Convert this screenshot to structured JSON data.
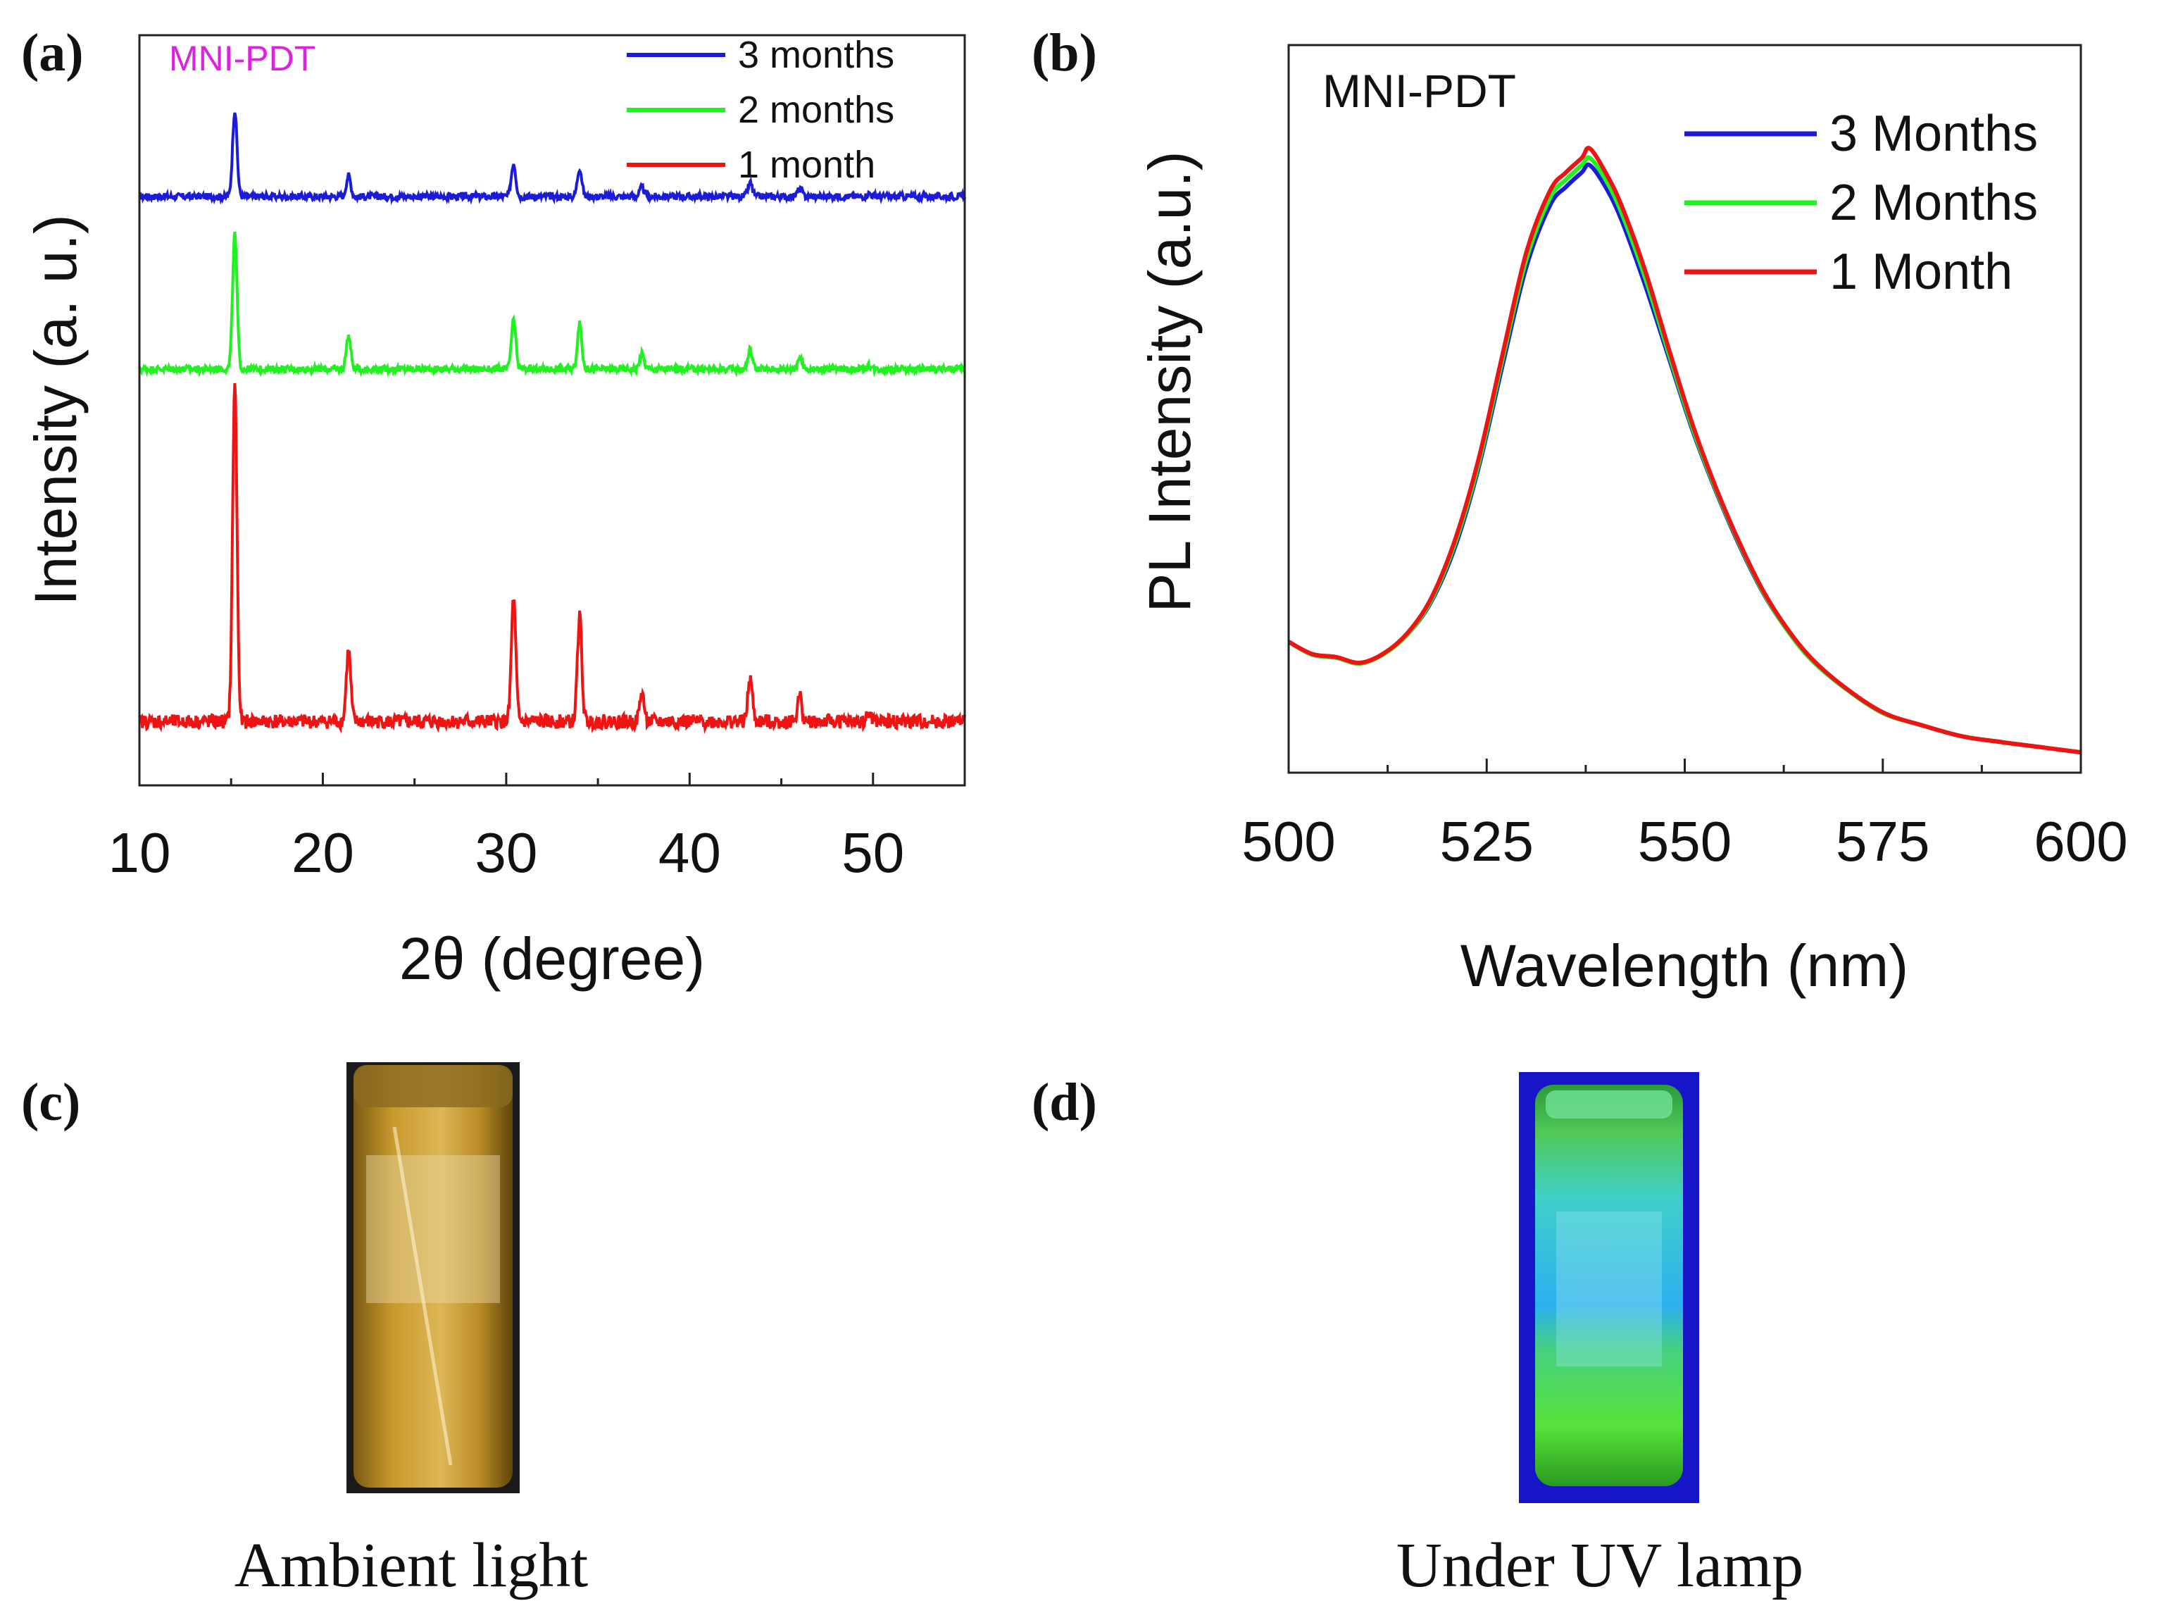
{
  "panels": {
    "a": {
      "label": "(a)",
      "sample": "MNI-PDT",
      "sample_color": "#e020e0"
    },
    "b": {
      "label": "(b)",
      "sample": "MNI-PDT",
      "sample_color": "#111111"
    },
    "c": {
      "label": "(c)",
      "caption": "Ambient light"
    },
    "d": {
      "label": "(d)",
      "caption": "Under UV lamp"
    }
  },
  "chart_data": [
    {
      "id": "xrd",
      "type": "line",
      "xlabel": "2θ (degree)",
      "ylabel": "Intensity (a. u.)",
      "xlim": [
        10,
        55
      ],
      "xticks": [
        10,
        20,
        30,
        40,
        50
      ],
      "ylim": [
        0,
        100
      ],
      "legend_position": "top-right",
      "peaks_2theta": [
        15.2,
        21.4,
        30.4,
        34.0,
        37.4,
        43.3,
        46.0,
        49.8
      ],
      "series": [
        {
          "name": "3 months",
          "color": "#1b1bd8",
          "baseline": 78.5,
          "peak_heights": [
            11.5,
            2.8,
            4.5,
            3.8,
            1.2,
            1.8,
            1.0,
            0.4
          ]
        },
        {
          "name": "2 months",
          "color": "#1ff21f",
          "baseline": 55.5,
          "peak_heights": [
            18.0,
            4.5,
            6.5,
            6.0,
            2.0,
            2.6,
            1.6,
            0.4
          ]
        },
        {
          "name": "1 month",
          "color": "#ee1414",
          "baseline": 8.5,
          "peak_heights": [
            45.0,
            9.5,
            16.5,
            14.0,
            3.8,
            5.8,
            3.4,
            1.0
          ]
        }
      ]
    },
    {
      "id": "pl",
      "type": "line",
      "xlabel": "Wavelength (nm)",
      "ylabel": "PL Intensity (a.u.)",
      "xlim": [
        500,
        600
      ],
      "xticks": [
        500,
        525,
        550,
        575,
        600
      ],
      "ylim": [
        0,
        100
      ],
      "legend_position": "top-right",
      "x": [
        500,
        503,
        506,
        509,
        512,
        515,
        518,
        521,
        524,
        527,
        530,
        533,
        535,
        537,
        538,
        540,
        542,
        545,
        548,
        551,
        554,
        557,
        560,
        563,
        566,
        570,
        575,
        580,
        585,
        590,
        595,
        600
      ],
      "series": [
        {
          "name": "3 Months",
          "color": "#1b1bd8",
          "values": [
            18.0,
            16.2,
            15.8,
            15.0,
            16.3,
            19.0,
            23.5,
            31.0,
            42.0,
            56.0,
            69.5,
            78.0,
            80.5,
            82.5,
            83.5,
            80.5,
            76.0,
            67.0,
            57.0,
            47.0,
            38.5,
            31.0,
            24.5,
            19.5,
            15.5,
            11.8,
            8.2,
            6.5,
            5.0,
            4.2,
            3.5,
            2.8
          ]
        },
        {
          "name": "2 Months",
          "color": "#1ff21f",
          "values": [
            18.0,
            16.2,
            15.8,
            15.0,
            16.3,
            19.0,
            23.7,
            31.5,
            42.5,
            56.8,
            70.5,
            79.0,
            81.5,
            83.5,
            84.5,
            81.5,
            77.0,
            68.0,
            57.5,
            47.3,
            38.7,
            31.2,
            24.6,
            19.5,
            15.5,
            11.8,
            8.2,
            6.5,
            5.0,
            4.2,
            3.5,
            2.8
          ]
        },
        {
          "name": "1 Month",
          "color": "#ee1414",
          "values": [
            18.0,
            16.3,
            15.9,
            15.1,
            16.4,
            19.2,
            24.0,
            32.0,
            43.2,
            57.5,
            71.5,
            80.0,
            82.5,
            84.5,
            85.8,
            82.5,
            78.0,
            69.0,
            58.2,
            47.8,
            39.0,
            31.4,
            24.8,
            19.7,
            15.7,
            11.9,
            8.3,
            6.5,
            5.0,
            4.2,
            3.5,
            2.8
          ]
        }
      ]
    }
  ]
}
